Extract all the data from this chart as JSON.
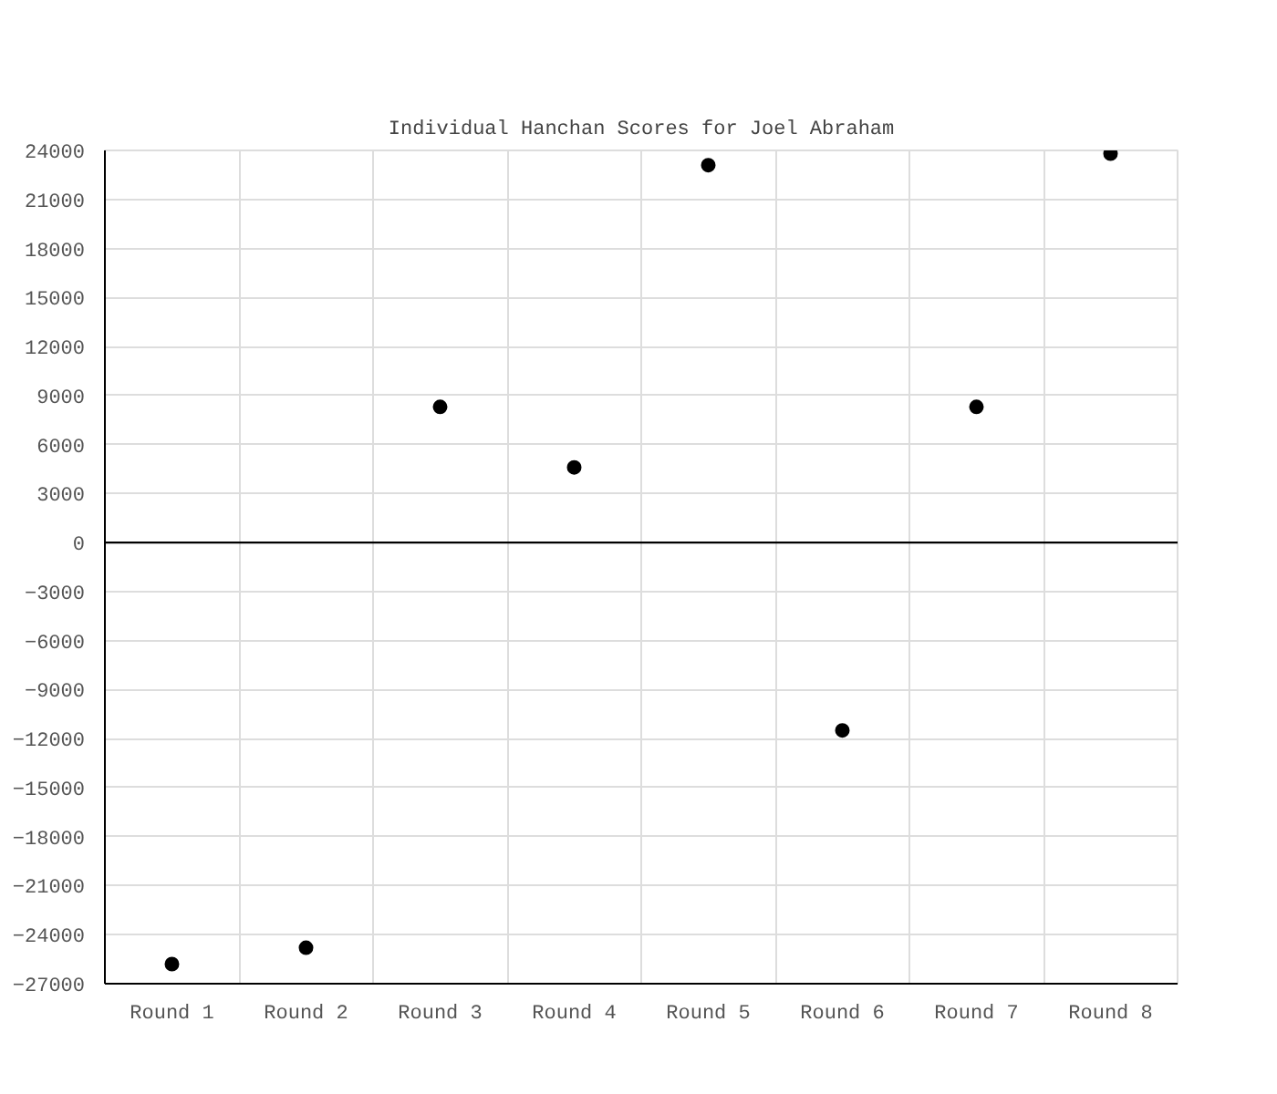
{
  "chart_data": {
    "type": "scatter",
    "title": "Individual Hanchan Scores for Joel Abraham",
    "categories": [
      "Round 1",
      "Round 2",
      "Round 3",
      "Round 4",
      "Round 5",
      "Round 6",
      "Round 7",
      "Round 8"
    ],
    "values": [
      -25800,
      -24800,
      8300,
      4600,
      23100,
      -11500,
      8300,
      23800
    ],
    "color": "#000000",
    "marker": "circle",
    "ylim": [
      -27000,
      24000
    ],
    "yticks": [
      -27000,
      -24000,
      -21000,
      -18000,
      -15000,
      -12000,
      -9000,
      -6000,
      -3000,
      0,
      3000,
      6000,
      9000,
      12000,
      15000,
      18000,
      21000,
      24000
    ],
    "grid": true,
    "ref_lines": [
      {
        "axis": "y",
        "value": 0,
        "color": "#000000"
      }
    ]
  }
}
